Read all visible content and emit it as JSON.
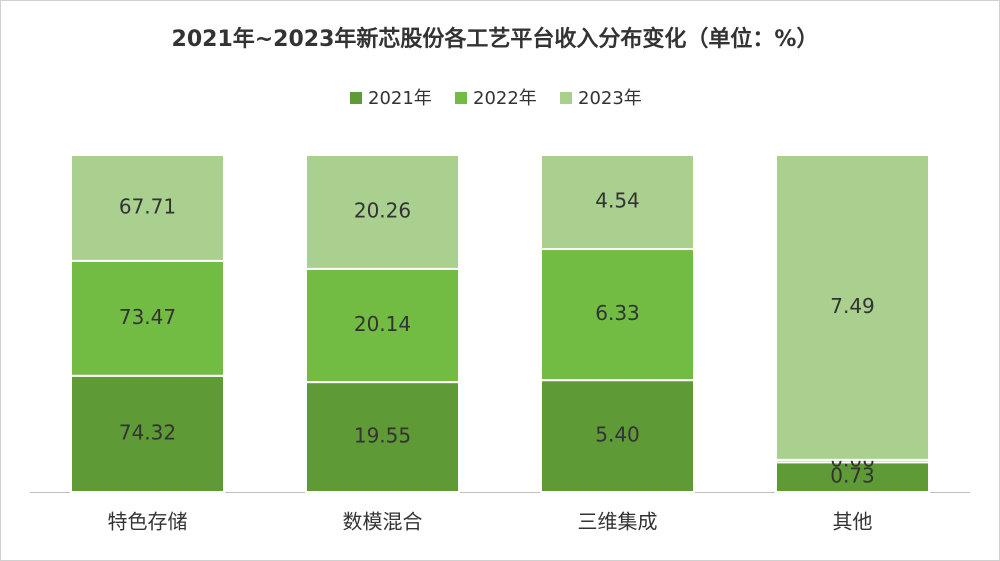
{
  "chart_data": {
    "type": "bar",
    "stacking": "percent",
    "title": "2021年~2023年新芯股份各工艺平台收入分布变化（单位：%）",
    "categories": [
      "特色存储",
      "数模混合",
      "三维集成",
      "其他"
    ],
    "series": [
      {
        "name": "2021年",
        "color": "#5e9a35",
        "values": [
          74.32,
          19.55,
          5.4,
          0.73
        ],
        "value_labels": [
          "74.32",
          "19.55",
          "5.40",
          "0.73"
        ]
      },
      {
        "name": "2022年",
        "color": "#72bc44",
        "values": [
          73.47,
          20.14,
          6.33,
          0.06
        ]
      },
      {
        "name": "2023年",
        "color": "#a9d08e",
        "values": [
          67.71,
          20.26,
          4.54,
          7.49
        ]
      }
    ],
    "legend": "top"
  }
}
